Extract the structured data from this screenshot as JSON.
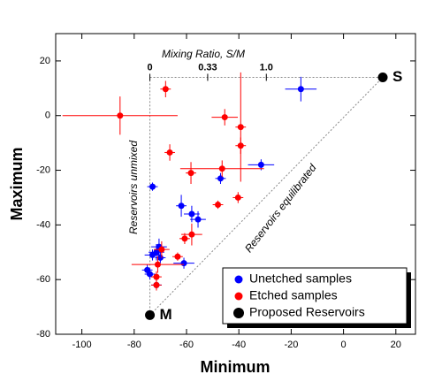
{
  "chart_data": {
    "type": "scatter",
    "x_label": "Minimum",
    "y_label": "Maximum",
    "xlim": [
      -110,
      27.5
    ],
    "ylim": [
      -80,
      30
    ],
    "xticks": [
      -100,
      -80,
      -60,
      -40,
      -20,
      0,
      20
    ],
    "yticks": [
      -80,
      -60,
      -40,
      -20,
      0,
      20
    ],
    "top_axis": {
      "label": "Mixing Ratio, S/M",
      "ticks": [
        0,
        0.33,
        {
          "value": 1,
          "label": "1.0"
        }
      ]
    },
    "annotations": [
      "Reservoirs unmixed",
      "Reservoirs equilibrated"
    ],
    "legend": "lower right",
    "series": [
      {
        "name": "Unetched samples",
        "color": "#0000ff",
        "x": [
          -16.3,
          -31.5,
          -47,
          -73,
          -62,
          -58,
          -55.6,
          -70.5,
          -71.5,
          -73,
          -61,
          -75,
          -74,
          -71.5,
          -70
        ],
        "values": [
          9.7,
          -18,
          -23,
          -26,
          -33,
          -36,
          -38,
          -48,
          -50,
          -51,
          -54,
          -56.5,
          -58,
          -62,
          -52
        ],
        "xerr": [
          6,
          5,
          2,
          2,
          2,
          3,
          3,
          3,
          3,
          3,
          4,
          2,
          2,
          2,
          2
        ],
        "yerr": [
          4.5,
          2,
          2,
          1.5,
          4,
          3,
          3,
          3,
          3,
          2,
          2,
          2,
          2,
          1.5,
          2
        ]
      },
      {
        "name": "Etched samples",
        "color": "#ff0000",
        "x": [
          -68,
          -85.4,
          -45.4,
          -39.3,
          -46.4,
          -39.3,
          -66.4,
          -58.3,
          -40.3,
          -48,
          -58,
          -60.7,
          -71,
          -63.4,
          -71.5,
          -71.5,
          -69.5
        ],
        "values": [
          9.7,
          0,
          -0.6,
          -4.2,
          -19.4,
          -11,
          -13.5,
          -21,
          -30,
          -32.6,
          -43.5,
          -45,
          -54.5,
          -51.6,
          -59,
          -62,
          -49
        ],
        "xerr": [
          2,
          22,
          5,
          2,
          16,
          2,
          2,
          2,
          2,
          2,
          4,
          2,
          10,
          2,
          2,
          2,
          3
        ],
        "yerr": [
          3,
          7,
          3,
          20,
          3,
          3,
          3,
          4,
          2,
          1.5,
          4,
          2,
          3,
          1.5,
          2,
          2,
          3
        ]
      },
      {
        "name": "Proposed Reservoirs",
        "color": "#000000",
        "x": [
          15,
          -74
        ],
        "values": [
          14,
          -73
        ],
        "point_labels": [
          "S",
          "M"
        ]
      }
    ]
  }
}
